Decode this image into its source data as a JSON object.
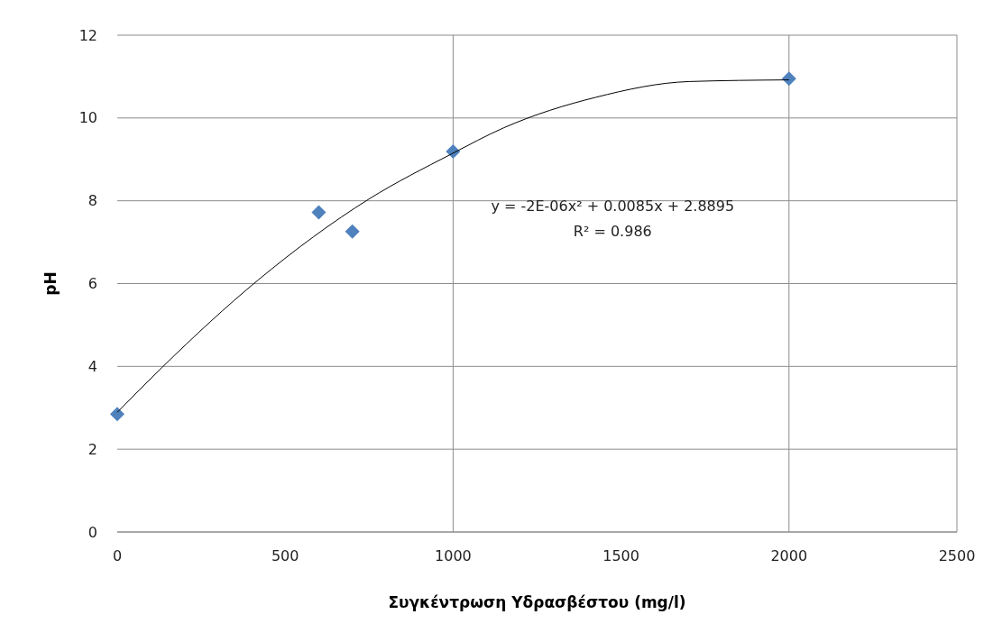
{
  "chart_data": {
    "type": "scatter",
    "xlabel": "Συγκέντρωση Υδρασβέστου (mg/l)",
    "ylabel": "pH",
    "series": [
      {
        "color": "#4f81bd",
        "marker": "diamond",
        "x": [
          0,
          600,
          700,
          1000,
          2000
        ],
        "values": [
          2.85,
          7.72,
          7.26,
          9.19,
          10.95
        ]
      },
      {
        "type": "line",
        "color": "#000000",
        "marker": "none",
        "x": [
          0,
          134,
          420,
          749,
          995,
          1150,
          1425,
          1703,
          2000
        ],
        "values": [
          2.89,
          3.98,
          6.09,
          8.04,
          9.13,
          9.76,
          10.5,
          10.88,
          10.92
        ]
      }
    ],
    "xlim": [
      0,
      2500
    ],
    "xticks": [
      0,
      500,
      1000,
      1500,
      2000,
      2500
    ],
    "ylim": [
      0,
      12
    ],
    "yticks": [
      0,
      2,
      4,
      6,
      8,
      10,
      12
    ],
    "grid": "y",
    "ref_lines": [
      {
        "axis": "x",
        "value": 1000,
        "color": "#8c8c8c"
      },
      {
        "axis": "x",
        "value": 2000,
        "color": "#8c8c8c"
      }
    ],
    "annotations": [
      "y = -2E-06x² + 0.0085x + 2.8895",
      "R² = 0.986"
    ]
  }
}
